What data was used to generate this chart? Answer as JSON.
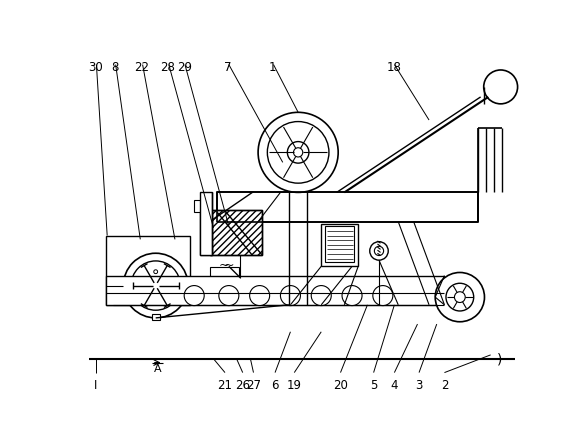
{
  "background_color": "#ffffff",
  "line_color": "#000000",
  "figsize": [
    5.87,
    4.31
  ],
  "dpi": 100
}
